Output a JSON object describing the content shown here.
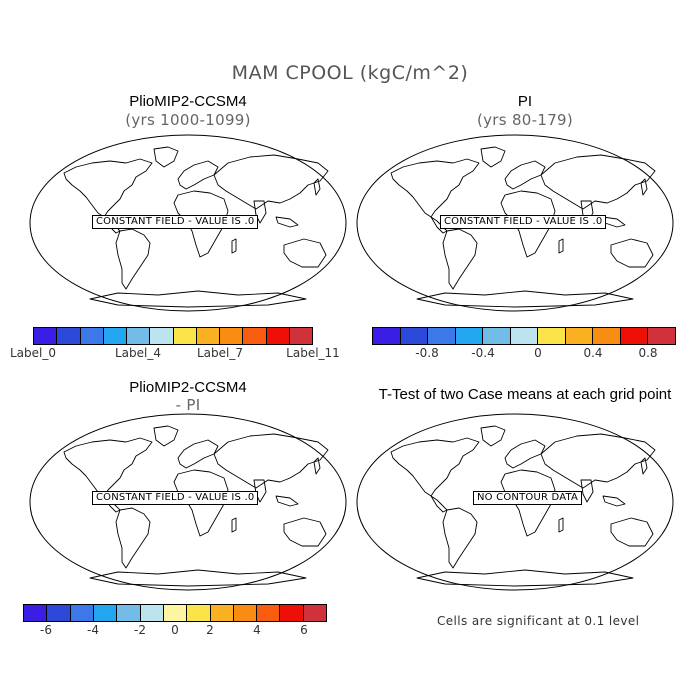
{
  "title": "MAM CPOOL (kgC/m^2)",
  "panels": [
    {
      "title": "PlioMIP2-CCSM4",
      "subtitle": "(yrs 1000-1099)",
      "note": "CONSTANT FIELD - VALUE IS .0"
    },
    {
      "title": "PI",
      "subtitle": "(yrs 80-179)",
      "note": "CONSTANT FIELD - VALUE IS .0"
    },
    {
      "title": "PlioMIP2-CCSM4",
      "subtitle": "- PI",
      "note": "CONSTANT FIELD - VALUE IS .0"
    },
    {
      "title": "T-Test of two Case means at each grid point",
      "subtitle": "",
      "note": "NO CONTOUR DATA"
    }
  ],
  "colorbars": {
    "cb1": {
      "colors": [
        "#3b1ee6",
        "#2c48d8",
        "#3d78e8",
        "#22a6f0",
        "#73bce8",
        "#bde3ef",
        "#fbe34a",
        "#f9b121",
        "#f98d14",
        "#f75c0f",
        "#ee0f06",
        "#d0313a"
      ],
      "labels": [
        "Label_0",
        "Label_4",
        "Label_7",
        "Label_11"
      ]
    },
    "cb2": {
      "colors": [
        "#3b1ee6",
        "#2c48d8",
        "#3d78e8",
        "#22a6f0",
        "#73bce8",
        "#bde3ef",
        "#fbe34a",
        "#f9b121",
        "#f98d14",
        "#ee0f06",
        "#d0313a"
      ],
      "labels": [
        "-0.8",
        "-0.4",
        "0",
        "0.4",
        "0.8"
      ]
    },
    "cb3": {
      "colors": [
        "#3b1ee6",
        "#2c48d8",
        "#3d78e8",
        "#22a6f0",
        "#73bce8",
        "#bde3ef",
        "#fdf5a0",
        "#fbe34a",
        "#f9b121",
        "#f98d14",
        "#f75c0f",
        "#ee0f06",
        "#d0313a"
      ],
      "labels": [
        "-6",
        "-4",
        "-2",
        "0",
        "2",
        "4",
        "6"
      ]
    }
  },
  "significance_note": "Cells are significant at 0.1 level"
}
